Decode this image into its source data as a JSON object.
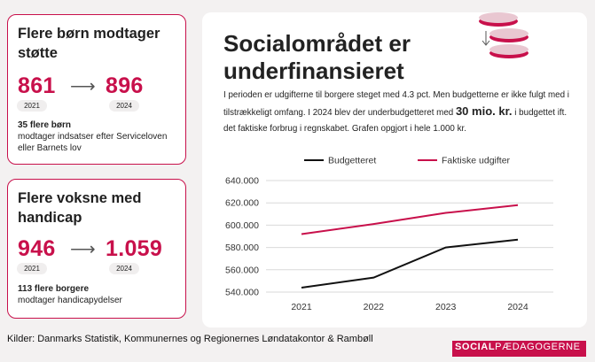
{
  "card1": {
    "title": "Flere børn modtager støtte",
    "from_value": "861",
    "to_value": "896",
    "from_year": "2021",
    "to_year": "2024",
    "desc_bold": "35 flere børn",
    "desc_rest": "modtager indsatser efter Serviceloven eller Barnets lov"
  },
  "card2": {
    "title": "Flere voksne med handicap",
    "from_value": "946",
    "to_value": "1.059",
    "from_year": "2021",
    "to_year": "2024",
    "desc_bold": "113 flere borgere",
    "desc_rest": "modtager handicapydelser"
  },
  "main": {
    "headline": "Socialområdet er underfinansieret",
    "lead_part1": "I perioden er udgifterne til borgere steget med 4.3 pct. Men budgetterne er ikke fulgt med i tilstrækkeligt omfang. I 2024 blev der underbudgetteret med ",
    "lead_emphasis": "30 mio. kr.",
    "lead_part2": " i budgettet ift. det faktiske forbrug i regnskabet. Grafen opgjort i hele 1.000 kr."
  },
  "source": "Kilder: Danmarks Statistik, Kommunernes og Regionernes Løndatakontor & Rambøll",
  "logo": {
    "left": "SOCIAL",
    "right": "PÆDAGOGERNE"
  },
  "colors": {
    "accent": "#c8104b",
    "budget": "#111111",
    "actual": "#c8104b"
  },
  "icons": [
    "coin-stack-icon",
    "arrow-down-icon"
  ],
  "chart_data": {
    "type": "line",
    "x": [
      "2021",
      "2022",
      "2023",
      "2024"
    ],
    "series": [
      {
        "name": "Budgetteret",
        "values": [
          544000,
          553000,
          580000,
          587000
        ],
        "color": "#111111"
      },
      {
        "name": "Faktiske udgifter",
        "values": [
          592000,
          601000,
          611000,
          618000
        ],
        "color": "#c8104b"
      }
    ],
    "ylim": [
      540000,
      640000
    ],
    "yticks": [
      "540.000",
      "560.000",
      "580.000",
      "600.000",
      "620.000",
      "640.000"
    ],
    "ytick_values": [
      540000,
      560000,
      580000,
      600000,
      620000,
      640000
    ],
    "grid": true,
    "legend": "top"
  }
}
